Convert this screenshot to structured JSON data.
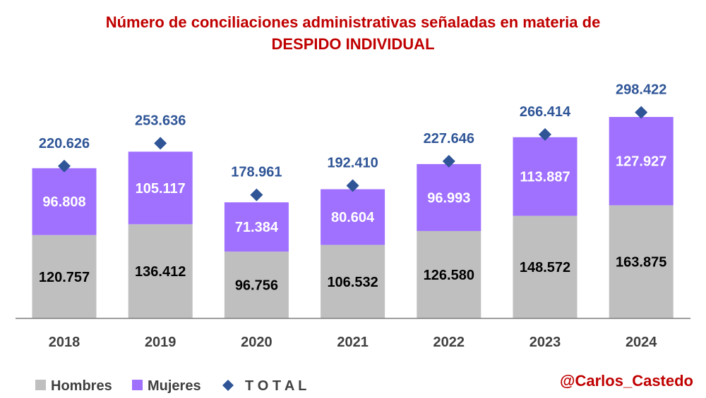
{
  "chart_data": {
    "type": "bar",
    "stacked": true,
    "title_line1": "Número de conciliaciones administrativas señaladas  en materia de",
    "title_line2": "DESPIDO INDIVIDUAL",
    "categories": [
      "2018",
      "2019",
      "2020",
      "2021",
      "2022",
      "2023",
      "2024"
    ],
    "series": [
      {
        "name": "Hombres",
        "color": "#bfbfbf",
        "values": [
          120757,
          136412,
          96756,
          106532,
          126580,
          148572,
          163875
        ],
        "labels": [
          "120.757",
          "136.412",
          "96.756",
          "106.532",
          "126.580",
          "148.572",
          "163.875"
        ]
      },
      {
        "name": "Mujeres",
        "color": "#a070ff",
        "values": [
          96808,
          105117,
          71384,
          80604,
          96993,
          113887,
          127927
        ],
        "labels": [
          "96.808",
          "105.117",
          "71.384",
          "80.604",
          "96.993",
          "113.887",
          "127.927"
        ]
      }
    ],
    "total": {
      "name": "T O T A L",
      "color": "#2f5597",
      "values": [
        220626,
        253636,
        178961,
        192410,
        227646,
        266414,
        298422
      ],
      "labels": [
        "220.626",
        "253.636",
        "178.961",
        "192.410",
        "227.646",
        "266.414",
        "298.422"
      ]
    },
    "ylim": [
      0,
      300000
    ],
    "grid": false,
    "legend": "bottom-left",
    "title_color": "#c00000",
    "hombres_label_color": "#000000",
    "mujeres_label_color": "#ffffff",
    "total_label_color": "#2f5597"
  },
  "credit": "@Carlos_Castedo",
  "credit_color": "#c00000"
}
